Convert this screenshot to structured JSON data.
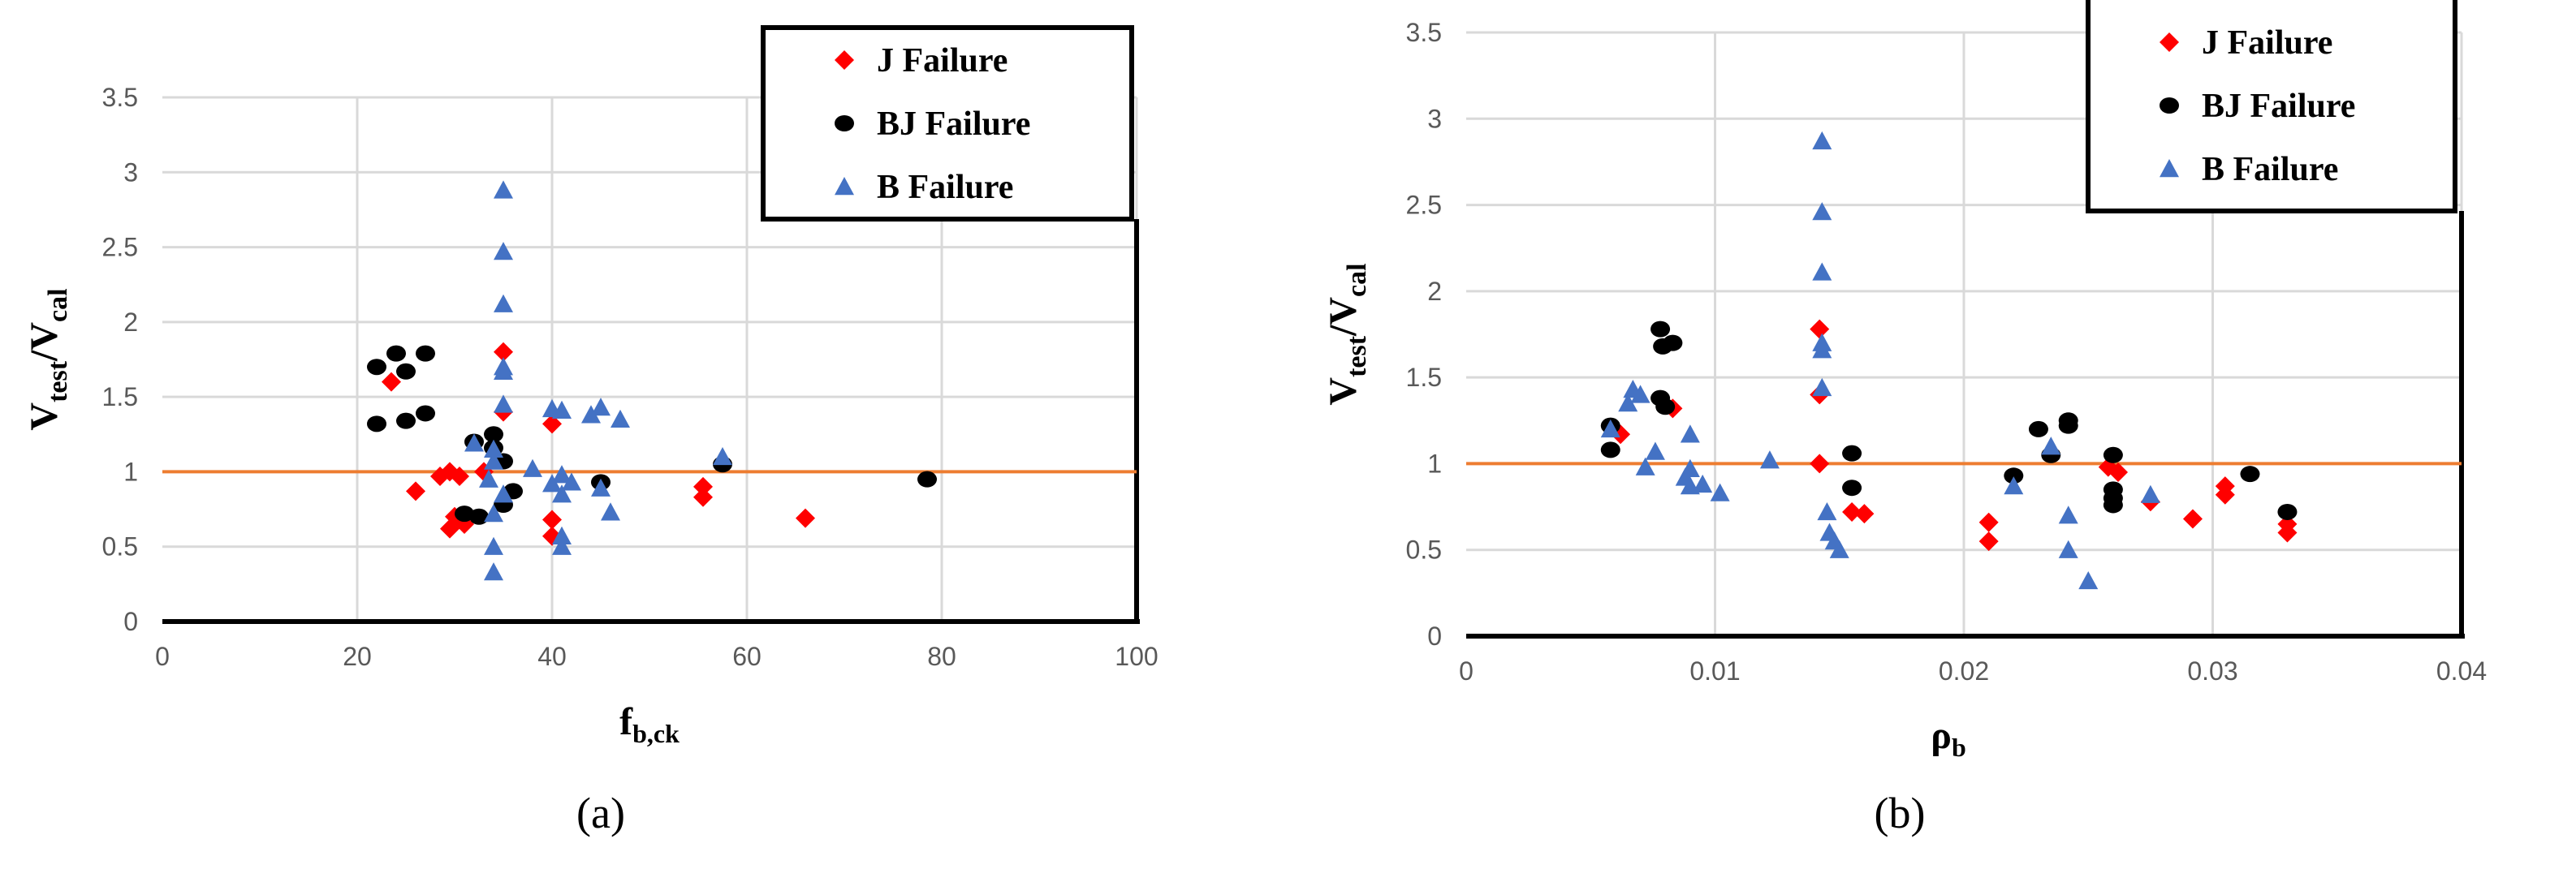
{
  "chart_data": [
    {
      "type": "scatter",
      "panel_label": "(a)",
      "xlabel_main": "f",
      "xlabel_sub": "b,ck",
      "ylabel_main_1": "V",
      "ylabel_sub_1": "test",
      "ylabel_slash": "/V",
      "ylabel_sub_2": "cal",
      "xlim": [
        0,
        100
      ],
      "ylim": [
        0,
        3.5
      ],
      "xticks": [
        "0",
        "20",
        "40",
        "60",
        "80",
        "100"
      ],
      "yticks": [
        "0",
        "0.5",
        "1",
        "1.5",
        "2",
        "2.5",
        "3",
        "3.5"
      ],
      "grid": true,
      "legend_position": "top-right",
      "reference_line_y": 1,
      "series": [
        {
          "name": "J Failure",
          "marker": "diamond",
          "color": "#FF0000",
          "points": [
            [
              23.5,
              1.6
            ],
            [
              26,
              0.87
            ],
            [
              28.5,
              0.97
            ],
            [
              29.5,
              1.0
            ],
            [
              29.5,
              0.62
            ],
            [
              30,
              0.7
            ],
            [
              31,
              0.65
            ],
            [
              30.5,
              0.97
            ],
            [
              33,
              1.0
            ],
            [
              35,
              1.8
            ],
            [
              35,
              1.4
            ],
            [
              40,
              1.32
            ],
            [
              40,
              0.68
            ],
            [
              40,
              0.57
            ],
            [
              55.5,
              0.9
            ],
            [
              55.5,
              0.83
            ],
            [
              66,
              0.69
            ]
          ]
        },
        {
          "name": "BJ Failure",
          "marker": "circle",
          "color": "#000000",
          "points": [
            [
              22,
              1.7
            ],
            [
              24,
              1.79
            ],
            [
              25,
              1.67
            ],
            [
              27,
              1.79
            ],
            [
              22,
              1.32
            ],
            [
              25,
              1.34
            ],
            [
              27,
              1.39
            ],
            [
              31,
              0.72
            ],
            [
              32,
              1.2
            ],
            [
              34,
              1.25
            ],
            [
              35,
              1.07
            ],
            [
              35,
              0.78
            ],
            [
              36,
              0.87
            ],
            [
              34,
              1.16
            ],
            [
              32.5,
              0.7
            ],
            [
              45,
              0.93
            ],
            [
              57.5,
              1.05
            ],
            [
              78.5,
              0.95
            ]
          ]
        },
        {
          "name": "B Failure",
          "marker": "triangle",
          "color": "#4472C4",
          "points": [
            [
              35,
              2.88
            ],
            [
              35,
              2.47
            ],
            [
              35,
              2.12
            ],
            [
              35,
              1.7
            ],
            [
              35,
              1.67
            ],
            [
              35,
              1.45
            ],
            [
              32,
              1.19
            ],
            [
              34,
              1.15
            ],
            [
              34,
              1.07
            ],
            [
              33.5,
              0.95
            ],
            [
              38,
              1.02
            ],
            [
              40,
              1.42
            ],
            [
              41,
              1.41
            ],
            [
              44,
              1.38
            ],
            [
              45,
              1.43
            ],
            [
              47,
              1.35
            ],
            [
              34,
              0.72
            ],
            [
              34,
              0.5
            ],
            [
              34,
              0.33
            ],
            [
              35,
              0.85
            ],
            [
              40,
              0.92
            ],
            [
              41,
              0.98
            ],
            [
              41,
              0.85
            ],
            [
              42,
              0.93
            ],
            [
              45,
              0.89
            ],
            [
              46,
              0.73
            ],
            [
              41,
              0.57
            ],
            [
              41,
              0.5
            ],
            [
              57.5,
              1.1
            ]
          ]
        }
      ]
    },
    {
      "type": "scatter",
      "panel_label": "(b)",
      "xlabel_main": "ρ",
      "xlabel_sub": "b",
      "ylabel_main_1": "V",
      "ylabel_sub_1": "test",
      "ylabel_slash": "/V",
      "ylabel_sub_2": "cal",
      "xlim": [
        0,
        0.04
      ],
      "ylim": [
        0,
        3.5
      ],
      "xticks": [
        "0",
        "0.01",
        "0.02",
        "0.03",
        "0.04"
      ],
      "yticks": [
        "0",
        "0.5",
        "1",
        "1.5",
        "2",
        "2.5",
        "3",
        "3.5"
      ],
      "grid": true,
      "legend_position": "top-right",
      "reference_line_y": 1,
      "series": [
        {
          "name": "J Failure",
          "marker": "diamond",
          "color": "#FF0000",
          "points": [
            [
              0.0062,
              1.17
            ],
            [
              0.0083,
              1.32
            ],
            [
              0.0142,
              1.78
            ],
            [
              0.0142,
              1.4
            ],
            [
              0.0142,
              1.0
            ],
            [
              0.0155,
              0.72
            ],
            [
              0.016,
              0.71
            ],
            [
              0.021,
              0.66
            ],
            [
              0.021,
              0.55
            ],
            [
              0.0258,
              0.98
            ],
            [
              0.0262,
              0.95
            ],
            [
              0.0275,
              0.78
            ],
            [
              0.0292,
              0.68
            ],
            [
              0.0305,
              0.87
            ],
            [
              0.0305,
              0.82
            ],
            [
              0.033,
              0.65
            ],
            [
              0.033,
              0.6
            ]
          ]
        },
        {
          "name": "BJ Failure",
          "marker": "circle",
          "color": "#000000",
          "points": [
            [
              0.0058,
              1.22
            ],
            [
              0.0058,
              1.08
            ],
            [
              0.0078,
              1.78
            ],
            [
              0.0079,
              1.68
            ],
            [
              0.0083,
              1.7
            ],
            [
              0.0078,
              1.38
            ],
            [
              0.008,
              1.33
            ],
            [
              0.0155,
              1.06
            ],
            [
              0.0155,
              0.86
            ],
            [
              0.022,
              0.93
            ],
            [
              0.023,
              1.2
            ],
            [
              0.0235,
              1.05
            ],
            [
              0.0242,
              1.25
            ],
            [
              0.0242,
              1.22
            ],
            [
              0.026,
              1.05
            ],
            [
              0.026,
              0.85
            ],
            [
              0.026,
              0.8
            ],
            [
              0.026,
              0.76
            ],
            [
              0.0315,
              0.94
            ],
            [
              0.033,
              0.72
            ]
          ]
        },
        {
          "name": "B Failure",
          "marker": "triangle",
          "color": "#4472C4",
          "points": [
            [
              0.0143,
              2.87
            ],
            [
              0.0143,
              2.46
            ],
            [
              0.0143,
              2.11
            ],
            [
              0.0143,
              1.7
            ],
            [
              0.0143,
              1.66
            ],
            [
              0.0143,
              1.44
            ],
            [
              0.0058,
              1.2
            ],
            [
              0.0065,
              1.35
            ],
            [
              0.0067,
              1.43
            ],
            [
              0.007,
              1.4
            ],
            [
              0.0072,
              0.98
            ],
            [
              0.0076,
              1.07
            ],
            [
              0.0088,
              0.92
            ],
            [
              0.009,
              1.17
            ],
            [
              0.009,
              0.97
            ],
            [
              0.009,
              0.87
            ],
            [
              0.0095,
              0.88
            ],
            [
              0.0102,
              0.83
            ],
            [
              0.0122,
              1.02
            ],
            [
              0.0145,
              0.72
            ],
            [
              0.0146,
              0.6
            ],
            [
              0.0148,
              0.55
            ],
            [
              0.015,
              0.5
            ],
            [
              0.022,
              0.87
            ],
            [
              0.0235,
              1.1
            ],
            [
              0.0242,
              0.7
            ],
            [
              0.0242,
              0.5
            ],
            [
              0.025,
              0.32
            ],
            [
              0.0275,
              0.82
            ]
          ]
        }
      ]
    }
  ],
  "colors": {
    "grid": "#D9D9D9",
    "reference_line": "#ED7D31"
  }
}
